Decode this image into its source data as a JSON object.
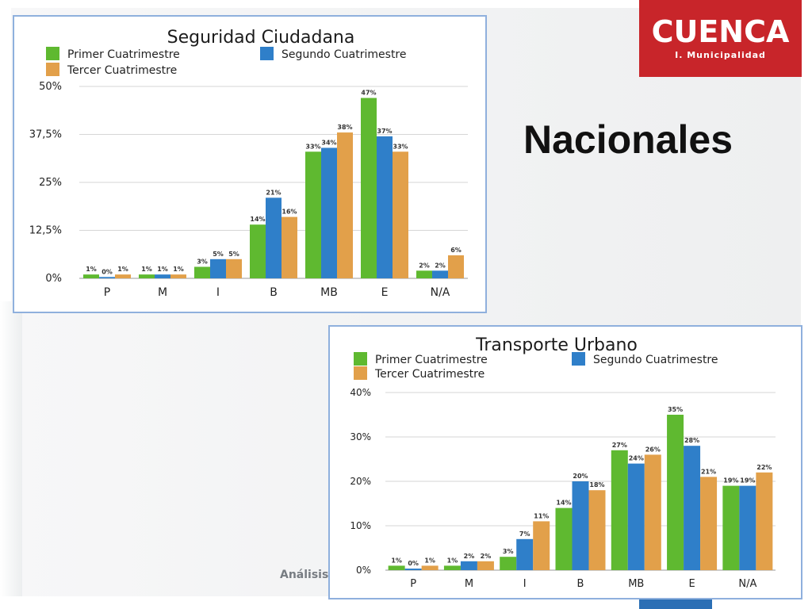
{
  "slide": {
    "title": "Nacionales",
    "footer_text": "Análisis d"
  },
  "logo": {
    "word": "CUENCA",
    "subtitle": "I. Municipalidad",
    "color": "#c8252a"
  },
  "colors": {
    "primer": "#5fb930",
    "segundo": "#2f7fc9",
    "tercer": "#e2a04a"
  },
  "chart_data": [
    {
      "type": "bar",
      "title": "Seguridad Ciudadana",
      "categories": [
        "P",
        "M",
        "I",
        "B",
        "MB",
        "E",
        "N/A"
      ],
      "series": [
        {
          "name": "Primer Cuatrimestre",
          "values": [
            1,
            1,
            3,
            14,
            33,
            47,
            2
          ],
          "labels": [
            "1%",
            "1%",
            "3%",
            "14%",
            "33%",
            "47%",
            "2%"
          ]
        },
        {
          "name": "Segundo Cuatrimestre",
          "values": [
            0,
            1,
            5,
            21,
            34,
            37,
            2
          ],
          "labels": [
            "0%",
            "1%",
            "5%",
            "21%",
            "34%",
            "37%",
            "2%"
          ]
        },
        {
          "name": "Tercer Cuatrimestre",
          "values": [
            1,
            1,
            5,
            16,
            38,
            33,
            6
          ],
          "labels": [
            "1%",
            "1%",
            "5%",
            "16%",
            "38%",
            "33%",
            "6%"
          ]
        }
      ],
      "ylim": [
        0,
        50
      ],
      "yticks": [
        0,
        12.5,
        25,
        37.5,
        50
      ],
      "ytick_labels": [
        "0%",
        "12,5%",
        "25%",
        "37,5%",
        "50%"
      ],
      "grid": true,
      "legend": "top"
    },
    {
      "type": "bar",
      "title": "Transporte Urbano",
      "categories": [
        "P",
        "M",
        "I",
        "B",
        "MB",
        "E",
        "N/A"
      ],
      "series": [
        {
          "name": "Primer Cuatrimestre",
          "values": [
            1,
            1,
            3,
            14,
            27,
            35,
            19
          ],
          "labels": [
            "1%",
            "1%",
            "3%",
            "14%",
            "27%",
            "35%",
            "19%"
          ]
        },
        {
          "name": "Segundo Cuatrimestre",
          "values": [
            0,
            2,
            7,
            20,
            24,
            28,
            19
          ],
          "labels": [
            "0%",
            "2%",
            "7%",
            "20%",
            "24%",
            "28%",
            "19%"
          ]
        },
        {
          "name": "Tercer Cuatrimestre",
          "values": [
            1,
            2,
            11,
            18,
            26,
            21,
            22
          ],
          "labels": [
            "1%",
            "2%",
            "11%",
            "18%",
            "26%",
            "21%",
            "22%"
          ]
        }
      ],
      "ylim": [
        0,
        40
      ],
      "yticks": [
        0,
        10,
        20,
        30,
        40
      ],
      "ytick_labels": [
        "0%",
        "10%",
        "20%",
        "30%",
        "40%"
      ],
      "grid": true,
      "legend": "top"
    }
  ]
}
